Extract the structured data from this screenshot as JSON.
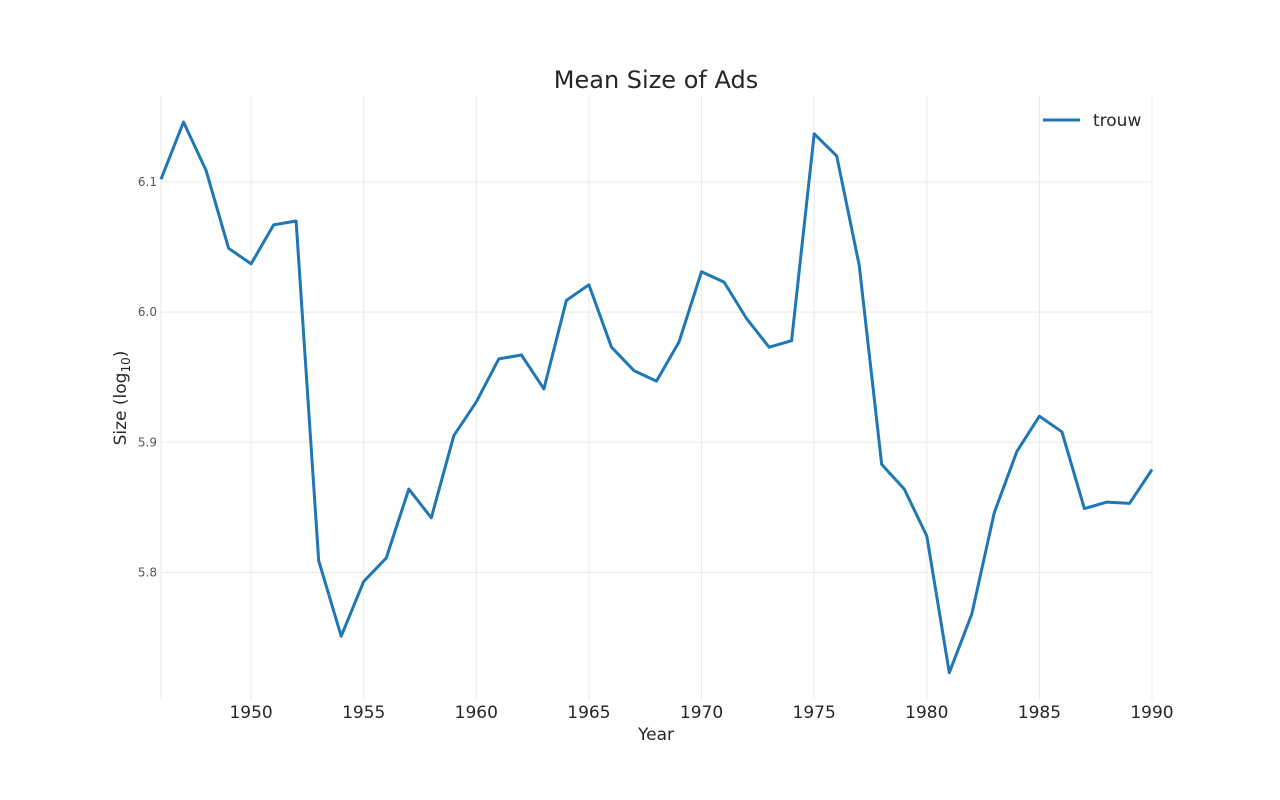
{
  "chart_data": {
    "type": "line",
    "title": "Mean Size of Ads",
    "xlabel": "Year",
    "ylabel": "Size (log",
    "ylabel_sub": "10",
    "ylabel_end": ")",
    "xlim": [
      1946,
      1990
    ],
    "ylim": [
      5.702,
      6.166
    ],
    "xticks": [
      1950,
      1955,
      1960,
      1965,
      1970,
      1975,
      1980,
      1985,
      1990
    ],
    "yticks": [
      5.8,
      5.9,
      6.0,
      6.1
    ],
    "xtick_labels": [
      "1950",
      "1955",
      "1960",
      "1965",
      "1970",
      "1975",
      "1980",
      "1985",
      "1990"
    ],
    "ytick_labels": [
      "5.8",
      "5.9",
      "6.0",
      "6.1"
    ],
    "grid": true,
    "legend_position": "top-right",
    "series": [
      {
        "name": "trouw",
        "color": "#1f77b4",
        "x": [
          1946,
          1947,
          1948,
          1949,
          1950,
          1951,
          1952,
          1953,
          1954,
          1955,
          1956,
          1957,
          1958,
          1959,
          1960,
          1961,
          1962,
          1963,
          1964,
          1965,
          1966,
          1967,
          1968,
          1969,
          1970,
          1971,
          1972,
          1973,
          1974,
          1975,
          1976,
          1977,
          1978,
          1979,
          1980,
          1981,
          1982,
          1983,
          1984,
          1985,
          1986,
          1987,
          1988,
          1989,
          1990
        ],
        "values": [
          6.102,
          6.146,
          6.109,
          6.049,
          6.037,
          6.067,
          6.07,
          5.809,
          5.751,
          5.793,
          5.811,
          5.864,
          5.842,
          5.905,
          5.931,
          5.964,
          5.967,
          5.941,
          6.009,
          6.021,
          5.973,
          5.955,
          5.947,
          5.977,
          6.031,
          6.023,
          5.995,
          5.973,
          5.978,
          6.137,
          6.12,
          6.036,
          5.883,
          5.864,
          5.828,
          5.723,
          5.768,
          5.846,
          5.893,
          5.92,
          5.908,
          5.849,
          5.854,
          5.853,
          5.879
        ]
      }
    ]
  }
}
